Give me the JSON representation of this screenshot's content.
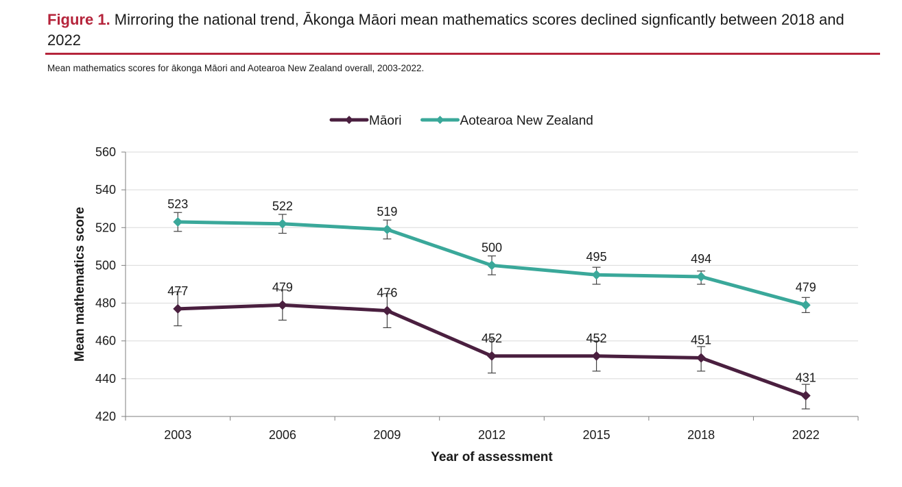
{
  "figure": {
    "label": "Figure 1.",
    "title": " Mirroring the national trend, Ākonga Māori mean mathematics scores declined signficantly between 2018 and 2022",
    "subtitle": "Mean mathematics scores for ākonga Māori and Aotearoa New Zealand overall, 2003-2022."
  },
  "chart_data": {
    "type": "line",
    "categories": [
      "2003",
      "2006",
      "2009",
      "2012",
      "2015",
      "2018",
      "2022"
    ],
    "xlabel": "Year of assessment",
    "ylabel": "Mean mathematics score",
    "ylim": [
      420,
      560
    ],
    "yticks": [
      420,
      440,
      460,
      480,
      500,
      520,
      540,
      560
    ],
    "grid": true,
    "legend_position": "top-center",
    "series": [
      {
        "name": "Māori",
        "color": "#4a1f3f",
        "values": [
          477,
          479,
          476,
          452,
          452,
          451,
          431
        ],
        "error": [
          [
            468,
            486
          ],
          [
            471,
            487
          ],
          [
            467,
            485
          ],
          [
            443,
            461
          ],
          [
            444,
            460
          ],
          [
            444,
            457
          ],
          [
            424,
            437
          ]
        ]
      },
      {
        "name": "Aotearoa New Zealand",
        "color": "#3aa89a",
        "values": [
          523,
          522,
          519,
          500,
          495,
          494,
          479
        ],
        "error": [
          [
            518,
            528
          ],
          [
            517,
            527
          ],
          [
            514,
            524
          ],
          [
            495,
            505
          ],
          [
            490,
            499
          ],
          [
            490,
            497
          ],
          [
            475,
            483
          ]
        ]
      }
    ]
  }
}
